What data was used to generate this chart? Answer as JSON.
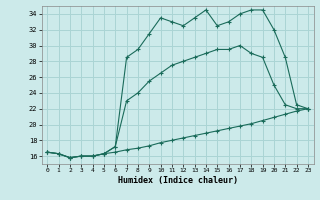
{
  "xlabel": "Humidex (Indice chaleur)",
  "bg_color": "#cceaea",
  "grid_color": "#aad4d4",
  "line_color": "#1a6b5a",
  "xlim": [
    -0.5,
    23.5
  ],
  "ylim": [
    15,
    35
  ],
  "xticks": [
    0,
    1,
    2,
    3,
    4,
    5,
    6,
    7,
    8,
    9,
    10,
    11,
    12,
    13,
    14,
    15,
    16,
    17,
    18,
    19,
    20,
    21,
    22,
    23
  ],
  "yticks": [
    16,
    18,
    20,
    22,
    24,
    26,
    28,
    30,
    32,
    34
  ],
  "line1_x": [
    0,
    1,
    2,
    3,
    4,
    5,
    6,
    7,
    8,
    9,
    10,
    11,
    12,
    13,
    14,
    15,
    16,
    17,
    18,
    19,
    20,
    21,
    22,
    23
  ],
  "line1_y": [
    16.5,
    16.3,
    15.8,
    16.0,
    16.0,
    16.3,
    17.2,
    28.5,
    29.5,
    31.5,
    33.5,
    33.0,
    32.5,
    33.5,
    34.5,
    32.5,
    33.0,
    34.0,
    34.5,
    34.5,
    32.0,
    28.5,
    22.5,
    22.0
  ],
  "line2_x": [
    0,
    1,
    2,
    3,
    4,
    5,
    6,
    7,
    8,
    9,
    10,
    11,
    12,
    13,
    14,
    15,
    16,
    17,
    18,
    19,
    20,
    21,
    22,
    23
  ],
  "line2_y": [
    16.5,
    16.3,
    15.8,
    16.0,
    16.0,
    16.3,
    17.2,
    23.0,
    24.0,
    25.5,
    26.5,
    27.5,
    28.0,
    28.5,
    29.0,
    29.5,
    29.5,
    30.0,
    29.0,
    28.5,
    25.0,
    22.5,
    22.0,
    22.0
  ],
  "line3_x": [
    0,
    1,
    2,
    3,
    4,
    5,
    6,
    7,
    8,
    9,
    10,
    11,
    12,
    13,
    14,
    15,
    16,
    17,
    18,
    19,
    20,
    21,
    22,
    23
  ],
  "line3_y": [
    16.5,
    16.3,
    15.8,
    16.0,
    16.0,
    16.3,
    16.5,
    16.8,
    17.0,
    17.3,
    17.7,
    18.0,
    18.3,
    18.6,
    18.9,
    19.2,
    19.5,
    19.8,
    20.1,
    20.5,
    20.9,
    21.3,
    21.7,
    22.0
  ]
}
